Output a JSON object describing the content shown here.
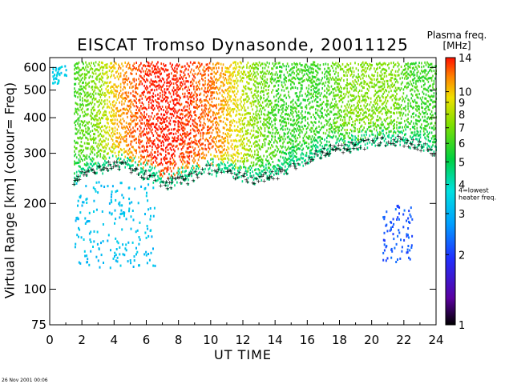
{
  "chart_data": {
    "type": "heatmap",
    "title": "EISCAT Tromso Dynasonde,  20011125",
    "xlabel": "UT TIME",
    "ylabel": "Virtual Range [km]   (colour= Freq)",
    "xlim": [
      0,
      24
    ],
    "ylim": [
      75,
      650
    ],
    "y_scale": "log",
    "x_ticks": [
      "0",
      "2",
      "4",
      "6",
      "8",
      "10",
      "12",
      "14",
      "16",
      "18",
      "20",
      "22",
      "24"
    ],
    "y_ticks": [
      "75",
      "100",
      "200",
      "300",
      "400",
      "500",
      "600"
    ],
    "colorbar": {
      "title_line1": "Plasma freq.",
      "title_line2": "[MHz]",
      "scale": "log",
      "range": [
        1,
        14
      ],
      "tick_labels": [
        "1",
        "2",
        "3",
        "4",
        "5",
        "6",
        "7",
        "8",
        "9",
        "10",
        "14"
      ],
      "annotation_line1": "4=lowest",
      "annotation_line2": "heater freq."
    },
    "echo_regions": [
      {
        "name": "F-region trace",
        "x_range": [
          1.5,
          24
        ],
        "bottom_km": [
          240,
          260,
          270,
          250,
          230,
          240,
          260,
          250,
          240,
          250,
          270,
          300,
          310,
          320,
          330,
          320,
          300
        ],
        "top_km": 620,
        "freq_mhz": [
          5,
          6,
          9,
          11,
          12,
          11,
          10,
          8,
          6,
          5,
          5,
          5,
          6,
          6,
          6,
          5,
          5
        ]
      },
      {
        "name": "early cyan echoes",
        "x_range": [
          0.1,
          1.0
        ],
        "km_range": [
          520,
          620
        ],
        "freq_mhz": 3.4
      },
      {
        "name": "sporadic cluster",
        "x_range": [
          1.5,
          6.5
        ],
        "km_range": [
          120,
          240
        ],
        "freq_mhz": 3.2
      },
      {
        "name": "blue cluster",
        "x_range": [
          20.5,
          22.5
        ],
        "km_range": [
          125,
          200
        ],
        "freq_mhz": 2.2
      }
    ]
  },
  "timestamp": "26 Nov 2001  00:06"
}
